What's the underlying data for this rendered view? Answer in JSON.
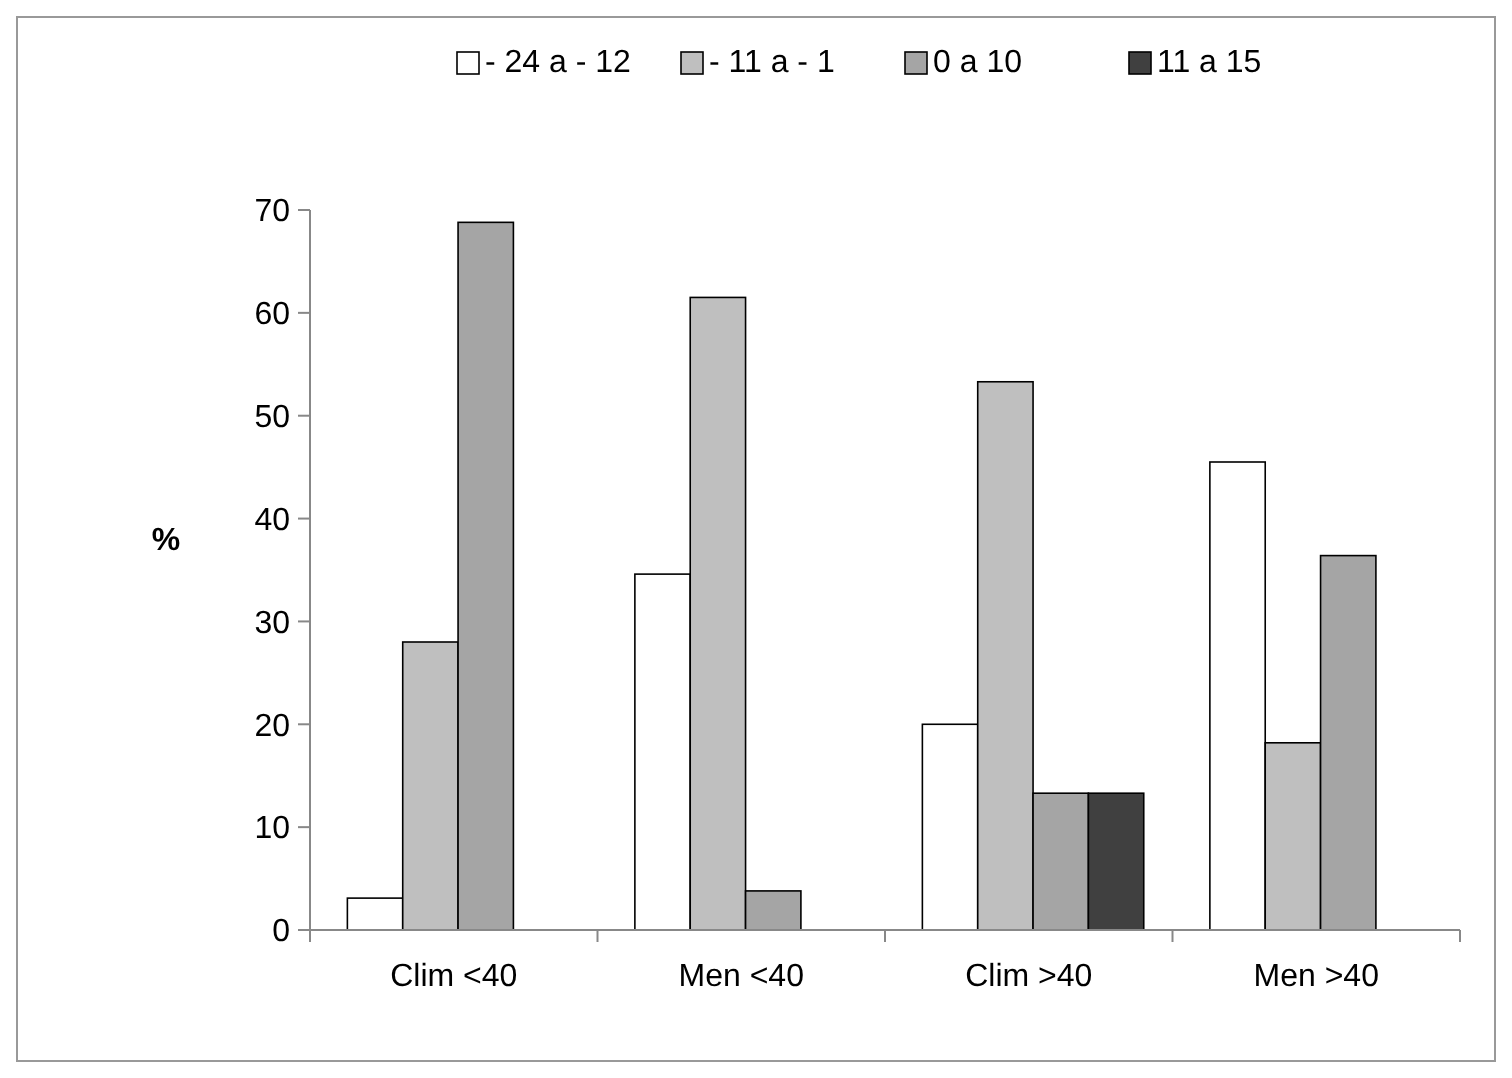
{
  "chart_data": {
    "type": "bar",
    "ylabel": "%",
    "categories": [
      "Clim <40",
      "Men <40",
      "Clim >40",
      "Men >40"
    ],
    "series": [
      {
        "name": "- 24 a - 12",
        "color": "#ffffff",
        "values": [
          3.1,
          34.6,
          20,
          45.5
        ]
      },
      {
        "name": "- 11 a - 1",
        "color": "#bfbfbf",
        "values": [
          28,
          61.5,
          53.3,
          18.2
        ]
      },
      {
        "name": "0 a 10",
        "color": "#a5a5a5",
        "values": [
          68.8,
          3.8,
          13.3,
          36.4
        ]
      },
      {
        "name": "11 a 15",
        "color": "#404040",
        "values": [
          null,
          null,
          13.3,
          null
        ]
      }
    ],
    "ylim": [
      0,
      70
    ],
    "yticks": [
      0,
      10,
      20,
      30,
      40,
      50,
      60,
      70
    ],
    "grid": false,
    "legend": "top"
  }
}
